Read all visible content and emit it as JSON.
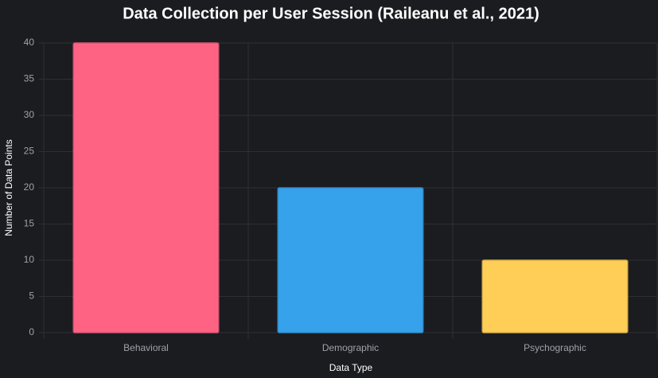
{
  "chart_data": {
    "type": "bar",
    "title": "Data Collection per User Session (Raileanu et al., 2021)",
    "x_label": "Data Type",
    "y_label": "Number of Data Points",
    "categories": [
      "Behavioral",
      "Demographic",
      "Psychographic"
    ],
    "values": [
      40,
      20,
      10
    ],
    "colors": [
      "#ff6384",
      "#36a2eb",
      "#ffce56"
    ],
    "ylim": [
      0,
      40
    ],
    "yticks": [
      0,
      5,
      10,
      15,
      20,
      25,
      30,
      35,
      40
    ],
    "grid": true
  }
}
